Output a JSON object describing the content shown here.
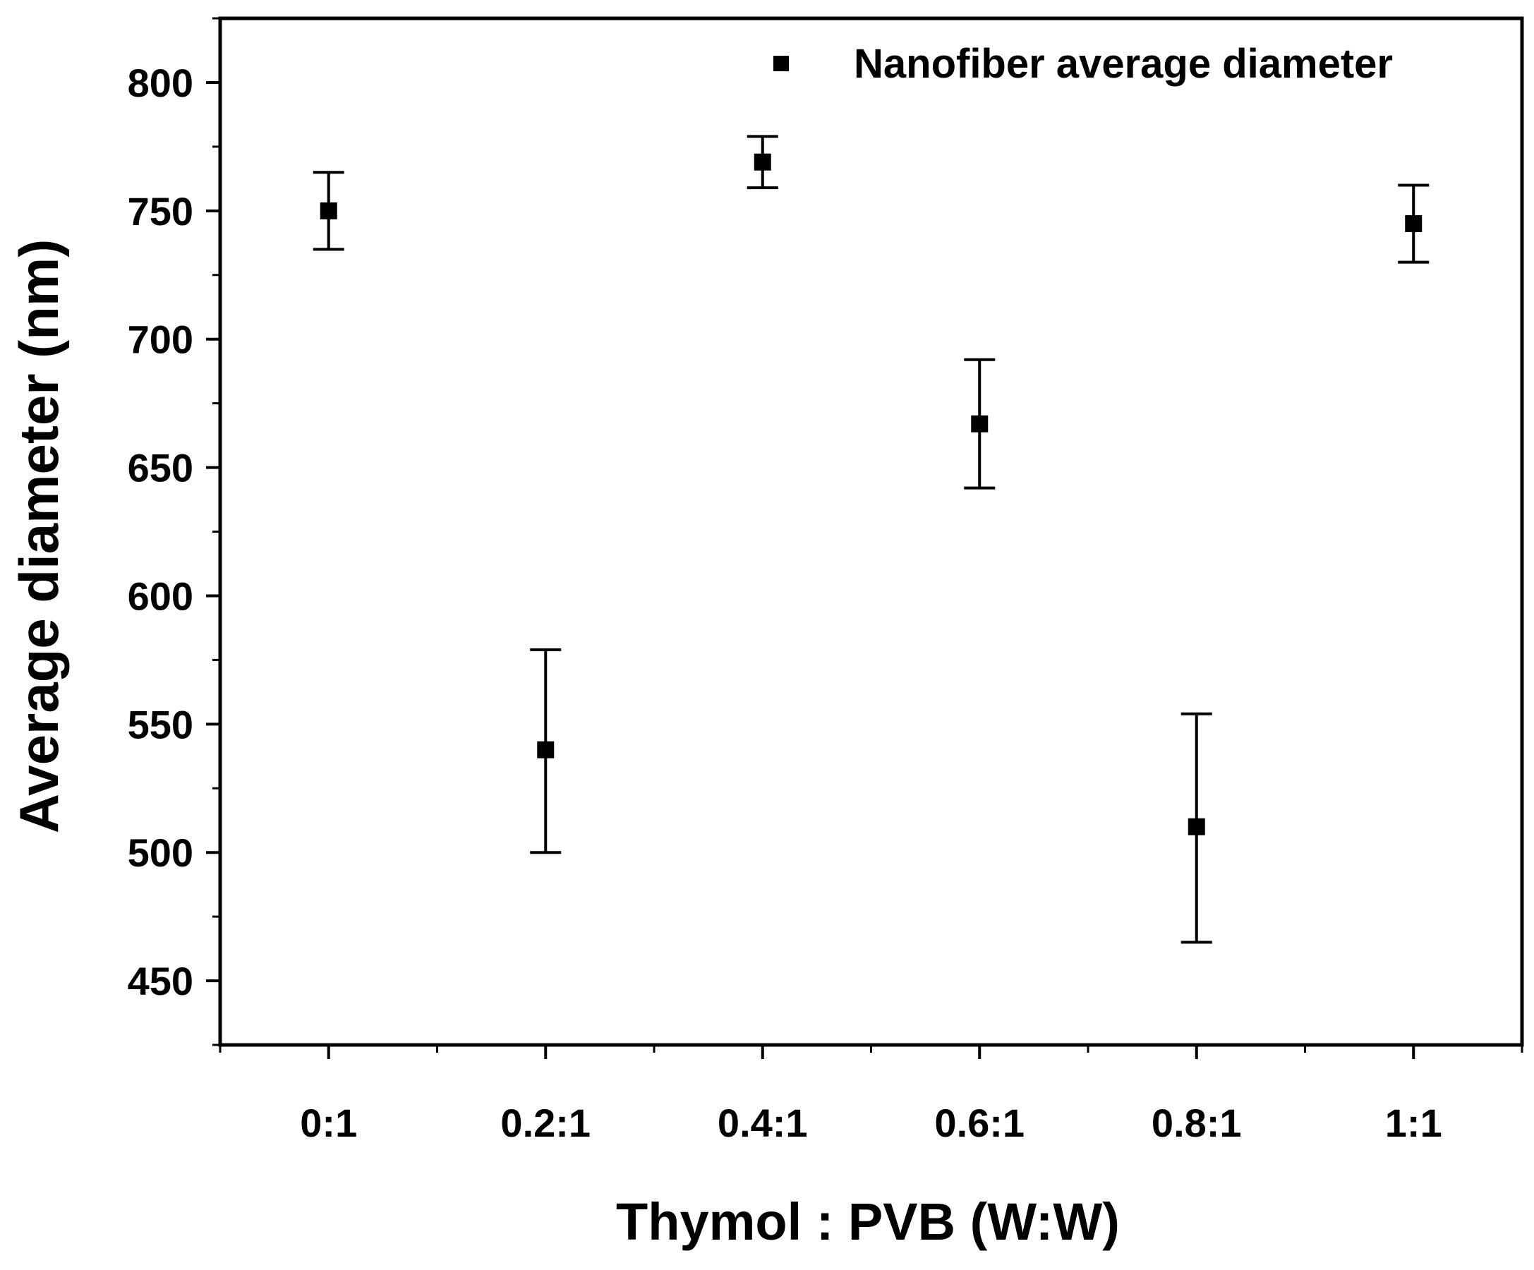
{
  "chart_data": {
    "type": "scatter",
    "title": "",
    "xlabel": "Thymol : PVB (W:W)",
    "ylabel": "Average diameter (nm)",
    "categories": [
      "0:1",
      "0.2:1",
      "0.4:1",
      "0.6:1",
      "0.8:1",
      "1:1"
    ],
    "series": [
      {
        "name": "Nanofiber average diameter",
        "marker": "square",
        "values": [
          750,
          540,
          769,
          667,
          510,
          745
        ],
        "error_upper": [
          765,
          579,
          779,
          692,
          554,
          760
        ],
        "error_lower": [
          735,
          500,
          759,
          642,
          465,
          730
        ]
      }
    ],
    "ylim": [
      425,
      825
    ],
    "yticks": [
      450,
      500,
      550,
      600,
      650,
      700,
      750,
      800
    ],
    "xlim": [
      -0.5,
      5.5
    ],
    "grid": false,
    "legend": "top-right",
    "colors": {
      "marker": "#000000",
      "axis": "#000000",
      "background": "#ffffff"
    }
  }
}
